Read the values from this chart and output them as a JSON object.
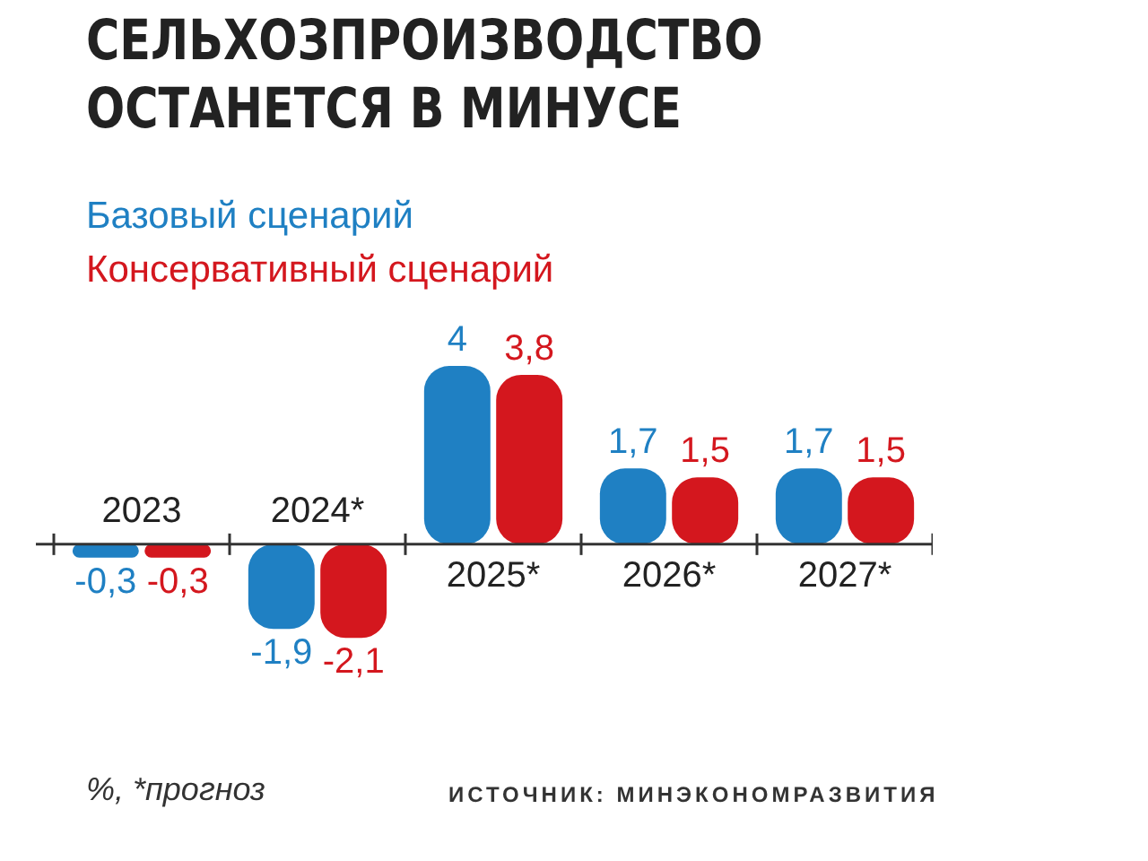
{
  "chart_data": {
    "type": "bar",
    "title": "СЕЛЬХОЗПРОИЗВОДСТВО ОСТАНЕТСЯ В МИНУСЕ",
    "categories": [
      "2023",
      "2024*",
      "2025*",
      "2026*",
      "2027*"
    ],
    "series": [
      {
        "name": "Базовый сценарий",
        "color": "#1f80c3",
        "values": [
          -0.3,
          -1.9,
          4,
          1.7,
          1.7
        ],
        "value_labels": [
          "-0,3",
          "-1,9",
          "4",
          "1,7",
          "1,7"
        ]
      },
      {
        "name": "Консервативный сценарий",
        "color": "#d4171e",
        "values": [
          -0.3,
          -2.1,
          3.8,
          1.5,
          1.5
        ],
        "value_labels": [
          "-0,3",
          "-2,1",
          "3,8",
          "1,5",
          "1,5"
        ]
      }
    ],
    "legend": "top left",
    "tick_labels": "x",
    "annotations": [
      "%, *прогноз",
      "ИСТОЧНИК: МИНЭКОНОМРАЗВИТИЯ"
    ]
  }
}
